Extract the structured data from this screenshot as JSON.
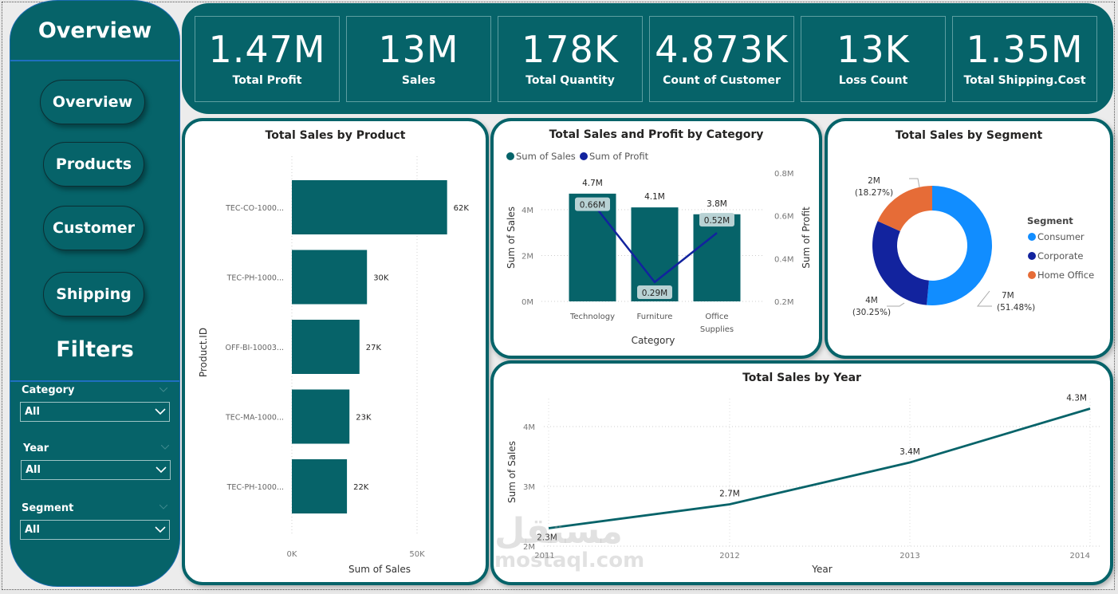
{
  "sidebar": {
    "title": "Overview",
    "nav": [
      {
        "label": "Overview"
      },
      {
        "label": "Products"
      },
      {
        "label": "Customer"
      },
      {
        "label": "Shipping"
      }
    ],
    "filters_title": "Filters",
    "slicers": [
      {
        "label": "Category",
        "value": "All"
      },
      {
        "label": "Year",
        "value": "All"
      },
      {
        "label": "Segment",
        "value": "All"
      }
    ]
  },
  "kpis": [
    {
      "value": "1.47M",
      "label": "Total Profit"
    },
    {
      "value": "13M",
      "label": "Sales"
    },
    {
      "value": "178K",
      "label": "Total Quantity"
    },
    {
      "value": "4.873K",
      "label": "Count of Customer"
    },
    {
      "value": "13K",
      "label": "Loss Count"
    },
    {
      "value": "1.35M",
      "label": "Total Shipping.Cost"
    }
  ],
  "colors": {
    "teal": "#066369",
    "navy": "#12239e",
    "consumer": "#118dff",
    "corporate": "#12239e",
    "home_office": "#e66c37"
  },
  "watermark": {
    "arabic": "مستقل",
    "latin": "mostaql.com"
  },
  "chart_data": [
    {
      "id": "sales_by_product",
      "type": "bar",
      "orientation": "horizontal",
      "title": "Total Sales by Product",
      "xlabel": "Sum of Sales",
      "ylabel": "Product.ID",
      "categories": [
        "TEC-CO-1000...",
        "TEC-PH-1000...",
        "OFF-BI-10003...",
        "TEC-MA-1000...",
        "TEC-PH-1000..."
      ],
      "values": [
        62000,
        30000,
        27000,
        23000,
        22000
      ],
      "data_labels": [
        "62K",
        "30K",
        "27K",
        "23K",
        "22K"
      ],
      "xticks": [
        "0K",
        "50K"
      ],
      "xlim": [
        0,
        62000
      ],
      "grid": true
    },
    {
      "id": "sales_profit_by_category",
      "type": "bar",
      "combo": "bar+line",
      "title": "Total Sales and Profit by Category",
      "xlabel": "Category",
      "ylabel": "Sum of Sales",
      "y2label": "Sum of Profit",
      "legend": [
        "Sum of Sales",
        "Sum of Profit"
      ],
      "legend_position": "top-left",
      "categories": [
        "Technology",
        "Furniture",
        "Office Supplies"
      ],
      "series": [
        {
          "name": "Sum of Sales",
          "type": "bar",
          "values": [
            4700000,
            4100000,
            3800000
          ],
          "labels": [
            "4.7M",
            "4.1M",
            "3.8M"
          ]
        },
        {
          "name": "Sum of Profit",
          "type": "line",
          "axis": "right",
          "values": [
            660000,
            290000,
            520000
          ],
          "labels": [
            "0.66M",
            "0.29M",
            "0.52M"
          ]
        }
      ],
      "yticks": [
        "0M",
        "2M",
        "4M"
      ],
      "ylim": [
        0,
        4700000
      ],
      "y2ticks": [
        "0.2M",
        "0.4M",
        "0.6M",
        "0.8M"
      ],
      "y2lim": [
        200000,
        800000
      ],
      "grid": true
    },
    {
      "id": "sales_by_segment",
      "type": "pie",
      "variant": "donut",
      "title": "Total Sales by Segment",
      "legend_title": "Segment",
      "legend_position": "right",
      "categories": [
        "Consumer",
        "Corporate",
        "Home Office"
      ],
      "values": [
        51.48,
        30.25,
        18.27
      ],
      "labels": [
        {
          "value": "7M",
          "pct": "(51.48%)"
        },
        {
          "value": "4M",
          "pct": "(30.25%)"
        },
        {
          "value": "2M",
          "pct": "(18.27%)"
        }
      ]
    },
    {
      "id": "sales_by_year",
      "type": "line",
      "title": "Total Sales by Year",
      "xlabel": "Year",
      "ylabel": "Sum of Sales",
      "x": [
        "2011",
        "2012",
        "2013",
        "2014"
      ],
      "values": [
        2300000,
        2700000,
        3400000,
        4300000
      ],
      "labels": [
        "2.3M",
        "2.7M",
        "3.4M",
        "4.3M"
      ],
      "yticks": [
        "2M",
        "3M",
        "4M"
      ],
      "ylim": [
        2000000,
        4500000
      ],
      "grid": true
    }
  ]
}
